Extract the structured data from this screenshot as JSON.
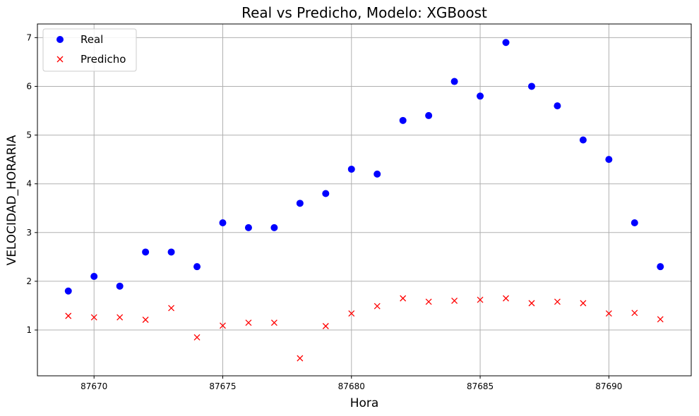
{
  "chart_data": {
    "type": "scatter",
    "title": "Real vs Predicho, Modelo: XGBoost",
    "xlabel": "Hora",
    "ylabel": "VELOCIDAD_HORARIA",
    "xlim": [
      87667.8,
      87693.2
    ],
    "ylim": [
      0.06,
      7.28
    ],
    "xticks": [
      87670,
      87675,
      87680,
      87685,
      87690
    ],
    "yticks": [
      1,
      2,
      3,
      4,
      5,
      6,
      7
    ],
    "grid": true,
    "legend_position": "upper-left",
    "x": [
      87669,
      87670,
      87671,
      87672,
      87673,
      87674,
      87675,
      87676,
      87677,
      87678,
      87679,
      87680,
      87681,
      87682,
      87683,
      87684,
      87685,
      87686,
      87687,
      87688,
      87689,
      87690,
      87691,
      87692
    ],
    "series": [
      {
        "name": "Real",
        "marker": "circle",
        "color": "#0000ff",
        "values": [
          1.8,
          2.1,
          1.9,
          2.6,
          2.6,
          2.3,
          3.2,
          3.1,
          3.1,
          3.6,
          3.8,
          4.3,
          4.2,
          5.3,
          5.4,
          6.1,
          5.8,
          6.9,
          6.0,
          5.6,
          4.9,
          4.5,
          3.2,
          2.3
        ]
      },
      {
        "name": "Predicho",
        "marker": "x",
        "color": "#ff0000",
        "values": [
          1.29,
          1.26,
          1.26,
          1.21,
          1.45,
          0.85,
          1.09,
          1.15,
          1.15,
          0.42,
          1.08,
          1.34,
          1.49,
          1.65,
          1.58,
          1.6,
          1.62,
          1.65,
          1.55,
          1.58,
          1.55,
          1.34,
          1.35,
          1.22
        ]
      }
    ]
  }
}
